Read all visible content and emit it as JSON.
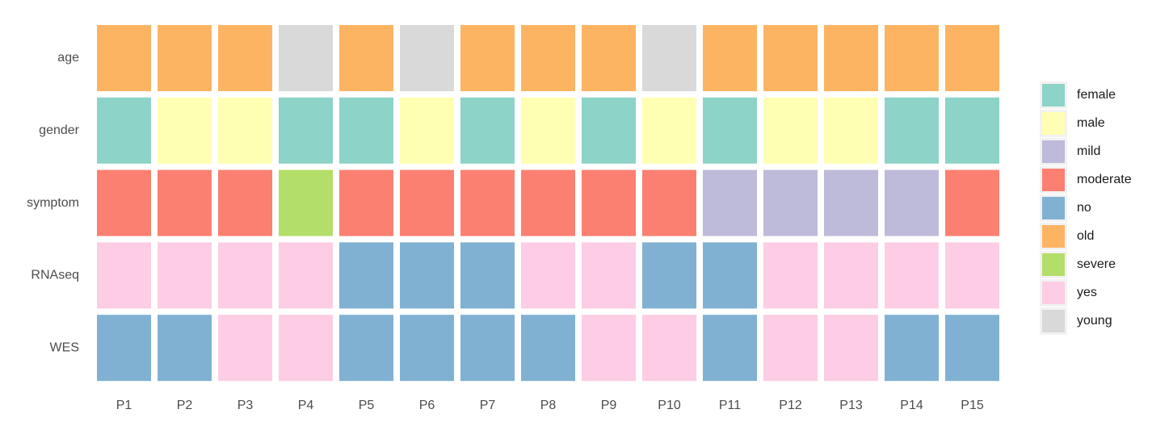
{
  "chart_data": {
    "type": "heatmap",
    "title": "",
    "xlabel": "",
    "ylabel": "",
    "rows": [
      "age",
      "gender",
      "symptom",
      "RNAseq",
      "WES"
    ],
    "columns": [
      "P1",
      "P2",
      "P3",
      "P4",
      "P5",
      "P6",
      "P7",
      "P8",
      "P9",
      "P10",
      "P11",
      "P12",
      "P13",
      "P14",
      "P15"
    ],
    "values": [
      [
        "old",
        "old",
        "old",
        "young",
        "old",
        "young",
        "old",
        "old",
        "old",
        "young",
        "old",
        "old",
        "old",
        "old",
        "old"
      ],
      [
        "female",
        "male",
        "male",
        "female",
        "female",
        "male",
        "female",
        "male",
        "female",
        "male",
        "female",
        "male",
        "male",
        "female",
        "female"
      ],
      [
        "moderate",
        "moderate",
        "moderate",
        "severe",
        "moderate",
        "moderate",
        "moderate",
        "moderate",
        "moderate",
        "moderate",
        "mild",
        "mild",
        "mild",
        "mild",
        "moderate"
      ],
      [
        "yes",
        "yes",
        "yes",
        "yes",
        "no",
        "no",
        "no",
        "yes",
        "yes",
        "no",
        "no",
        "yes",
        "yes",
        "yes",
        "yes"
      ],
      [
        "no",
        "no",
        "yes",
        "yes",
        "no",
        "no",
        "no",
        "no",
        "yes",
        "yes",
        "no",
        "yes",
        "yes",
        "no",
        "no"
      ]
    ],
    "legend": [
      {
        "label": "female",
        "color": "#8DD3C7"
      },
      {
        "label": "male",
        "color": "#FFFFB3"
      },
      {
        "label": "mild",
        "color": "#BEBADA"
      },
      {
        "label": "moderate",
        "color": "#FB8072"
      },
      {
        "label": "no",
        "color": "#80B1D3"
      },
      {
        "label": "old",
        "color": "#FDB462"
      },
      {
        "label": "severe",
        "color": "#B3DE69"
      },
      {
        "label": "yes",
        "color": "#FCCDE5"
      },
      {
        "label": "young",
        "color": "#D9D9D9"
      }
    ],
    "legend_position": "right"
  }
}
